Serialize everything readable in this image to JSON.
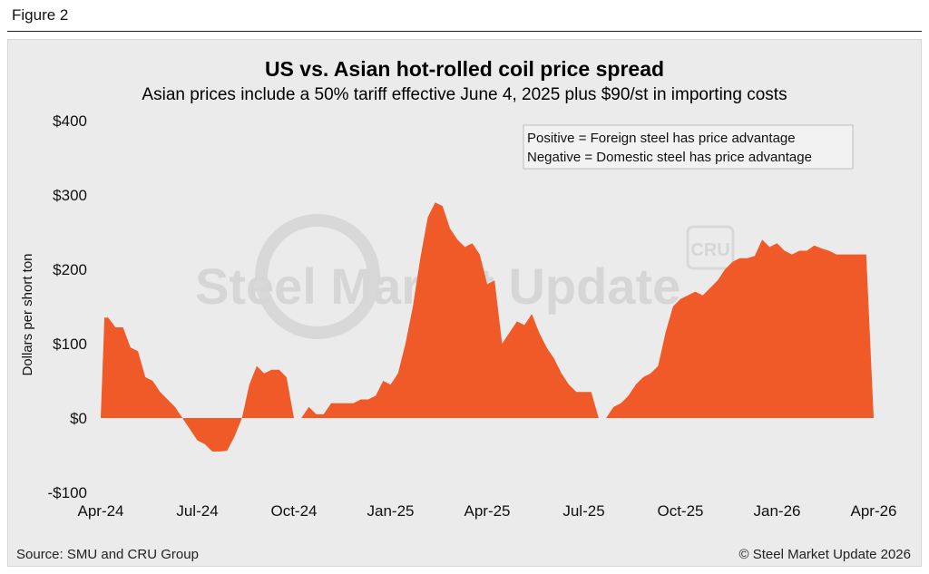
{
  "figure_label": "Figure 2",
  "footer": {
    "source": "Source: SMU and CRU Group",
    "copyright": "© Steel Market Update 2026"
  },
  "watermark": {
    "brand": "Steel Market Update",
    "logo": "CRU"
  },
  "colors": {
    "area": "#ef5a28",
    "panel": "#ebebeb",
    "note_bg": "#f2f2f2"
  },
  "chart_data": {
    "type": "area",
    "title": "US vs. Asian hot-rolled coil price spread",
    "subtitle": "Asian prices include a 50% tariff effective June 4, 2025 plus $90/st in importing costs",
    "xlabel": "",
    "ylabel": "Dollars per short ton",
    "ylim": [
      -100,
      400
    ],
    "yticks": [
      400,
      300,
      200,
      100,
      0,
      -100
    ],
    "ytick_labels": [
      "$400",
      "$300",
      "$200",
      "$100",
      "$0",
      "-$100"
    ],
    "xticks": [
      "Apr-24",
      "Jul-24",
      "Oct-24",
      "Jan-25",
      "Apr-25",
      "Jul-25",
      "Oct-25",
      "Jan-26",
      "Apr-26"
    ],
    "xlim_weeks": [
      0,
      104
    ],
    "legend_note": [
      "Positive = Foreign steel has price advantage",
      "Negative = Domestic steel has price advantage"
    ],
    "legend_note_position": "top-right",
    "grid": false,
    "series": [
      {
        "x_weeks": [
          0,
          0.5,
          1,
          2,
          3,
          4,
          5,
          6,
          7,
          8,
          9,
          10,
          11,
          12,
          13,
          14,
          15,
          16,
          17,
          18,
          19,
          20,
          21,
          22,
          23,
          24,
          25,
          26,
          27,
          28,
          29,
          30,
          31,
          32,
          33,
          34,
          35,
          36,
          37,
          38,
          39,
          40,
          41,
          42,
          43,
          44,
          45,
          46,
          47,
          48,
          49,
          50,
          51,
          52,
          53,
          54,
          55,
          56,
          57,
          58,
          59,
          60,
          61,
          62,
          63,
          64,
          65,
          66,
          67,
          68,
          69,
          70,
          71,
          72,
          73,
          74,
          75,
          76,
          77,
          78,
          79,
          80,
          81,
          82,
          83,
          84,
          85,
          86,
          87,
          88,
          89,
          90,
          91,
          92,
          93,
          94,
          95,
          96,
          97,
          98,
          99,
          100,
          101,
          102,
          103,
          104
        ],
        "values": [
          0,
          135,
          135,
          122,
          122,
          95,
          90,
          55,
          50,
          35,
          25,
          15,
          0,
          -15,
          -30,
          -35,
          -45,
          -45,
          -44,
          -25,
          0,
          45,
          70,
          60,
          65,
          65,
          55,
          0,
          0,
          15,
          5,
          5,
          20,
          20,
          20,
          20,
          25,
          25,
          30,
          50,
          45,
          60,
          100,
          150,
          215,
          270,
          290,
          285,
          255,
          240,
          230,
          235,
          220,
          180,
          185,
          100,
          115,
          130,
          125,
          140,
          115,
          95,
          80,
          60,
          45,
          35,
          35,
          35,
          0,
          0,
          15,
          20,
          30,
          45,
          55,
          60,
          70,
          115,
          150,
          160,
          165,
          170,
          165,
          175,
          185,
          200,
          210,
          215,
          215,
          218,
          240,
          230,
          235,
          225,
          220,
          225,
          225,
          232,
          228,
          225,
          220,
          220,
          220,
          220,
          220,
          0
        ]
      }
    ]
  }
}
